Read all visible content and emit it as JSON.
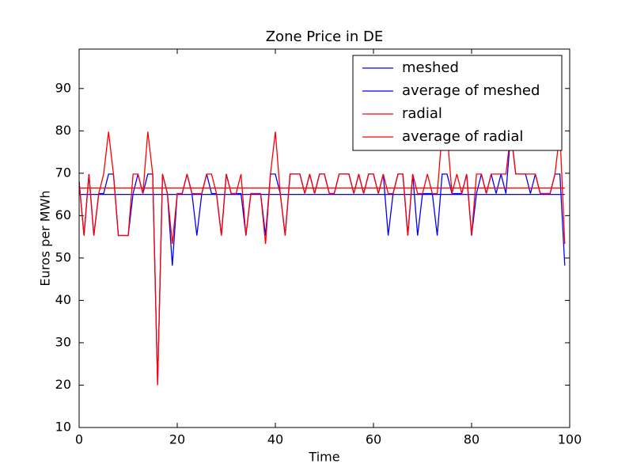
{
  "chart_data": {
    "type": "line",
    "title": "Zone Price in DE",
    "xlabel": "Time",
    "ylabel": "Euros per MWh",
    "x": [
      0,
      1,
      2,
      3,
      4,
      5,
      6,
      7,
      8,
      9,
      10,
      11,
      12,
      13,
      14,
      15,
      16,
      17,
      18,
      19,
      20,
      21,
      22,
      23,
      24,
      25,
      26,
      27,
      28,
      29,
      30,
      31,
      32,
      33,
      34,
      35,
      36,
      37,
      38,
      39,
      40,
      41,
      42,
      43,
      44,
      45,
      46,
      47,
      48,
      49,
      50,
      51,
      52,
      53,
      54,
      55,
      56,
      57,
      58,
      59,
      60,
      61,
      62,
      63,
      64,
      65,
      66,
      67,
      68,
      69,
      70,
      71,
      72,
      73,
      74,
      75,
      76,
      77,
      78,
      79,
      80,
      81,
      82,
      83,
      84,
      85,
      86,
      87,
      88,
      89,
      90,
      91,
      92,
      93,
      94,
      95,
      96,
      97,
      98,
      99
    ],
    "series": [
      {
        "name": "meshed",
        "color": "#0000ff",
        "values": [
          68,
          55.3,
          69.8,
          55.3,
          65.2,
          65.2,
          69.8,
          69.8,
          55.3,
          55.3,
          55.3,
          65.2,
          69.8,
          65.2,
          69.8,
          69.8,
          20,
          69.8,
          65.2,
          48.2,
          65.2,
          65.2,
          69.8,
          65.2,
          55.3,
          65.2,
          69.8,
          65.2,
          65.2,
          55.3,
          69.8,
          65.2,
          65.2,
          65.2,
          55.3,
          65.2,
          65.2,
          65.2,
          55.3,
          69.8,
          69.8,
          65.2,
          55.3,
          69.8,
          69.8,
          69.8,
          65.2,
          69.8,
          65.2,
          69.8,
          69.8,
          65.2,
          65.2,
          69.8,
          69.8,
          69.8,
          65.2,
          69.8,
          65.2,
          69.8,
          69.8,
          65.2,
          69.8,
          55.3,
          65.2,
          69.8,
          69.8,
          55.3,
          69.8,
          55.3,
          65.2,
          65.2,
          65.2,
          55.3,
          69.8,
          69.8,
          65.2,
          65.2,
          65.2,
          69.8,
          55.3,
          65.2,
          69.8,
          65.2,
          69.8,
          65.2,
          69.8,
          65.2,
          79.8,
          69.8,
          69.8,
          69.8,
          65.2,
          69.8,
          65.2,
          65.2,
          65.2,
          69.8,
          69.8,
          48.2
        ]
      },
      {
        "name": "average of meshed",
        "color": "#0000ff",
        "values": [
          65,
          65,
          65,
          65,
          65,
          65,
          65,
          65,
          65,
          65,
          65,
          65,
          65,
          65,
          65,
          65,
          65,
          65,
          65,
          65,
          65,
          65,
          65,
          65,
          65,
          65,
          65,
          65,
          65,
          65,
          65,
          65,
          65,
          65,
          65,
          65,
          65,
          65,
          65,
          65,
          65,
          65,
          65,
          65,
          65,
          65,
          65,
          65,
          65,
          65,
          65,
          65,
          65,
          65,
          65,
          65,
          65,
          65,
          65,
          65,
          65,
          65,
          65,
          65,
          65,
          65,
          65,
          65,
          65,
          65,
          65,
          65,
          65,
          65,
          65,
          65,
          65,
          65,
          65,
          65,
          65,
          65,
          65,
          65,
          65,
          65,
          65,
          65,
          65,
          65,
          65,
          65,
          65,
          65,
          65,
          65,
          65,
          65,
          65,
          65
        ]
      },
      {
        "name": "radial",
        "color": "#ff0000",
        "values": [
          68,
          55.3,
          69.8,
          55.3,
          65.2,
          69.8,
          79.8,
          69.8,
          55.3,
          55.3,
          55.3,
          69.8,
          69.8,
          65.2,
          79.8,
          69.8,
          20,
          69.8,
          65.2,
          53.3,
          65.2,
          65.2,
          69.8,
          65.2,
          65.2,
          65.2,
          69.8,
          69.8,
          65.2,
          55.3,
          69.8,
          65.2,
          65.2,
          69.8,
          55.3,
          65.2,
          65.2,
          65.2,
          53.3,
          69.8,
          79.8,
          65.2,
          55.3,
          69.8,
          69.8,
          69.8,
          65.2,
          69.8,
          65.2,
          69.8,
          69.8,
          65.2,
          65.2,
          69.8,
          69.8,
          69.8,
          65.2,
          69.8,
          65.2,
          69.8,
          69.8,
          65.2,
          69.8,
          65.2,
          65.2,
          69.8,
          69.8,
          55.3,
          69.8,
          65.2,
          65.2,
          69.8,
          65.2,
          65.2,
          79.8,
          79.8,
          65.2,
          69.8,
          65.2,
          69.8,
          55.3,
          69.8,
          69.8,
          65.2,
          69.8,
          69.8,
          69.8,
          69.8,
          79.8,
          69.8,
          69.8,
          69.8,
          69.8,
          69.8,
          65.2,
          65.2,
          65.2,
          69.8,
          79.8,
          53.3
        ]
      },
      {
        "name": "average of radial",
        "color": "#ff0000",
        "values": [
          66.5,
          66.5,
          66.5,
          66.5,
          66.5,
          66.5,
          66.5,
          66.5,
          66.5,
          66.5,
          66.5,
          66.5,
          66.5,
          66.5,
          66.5,
          66.5,
          66.5,
          66.5,
          66.5,
          66.5,
          66.5,
          66.5,
          66.5,
          66.5,
          66.5,
          66.5,
          66.5,
          66.5,
          66.5,
          66.5,
          66.5,
          66.5,
          66.5,
          66.5,
          66.5,
          66.5,
          66.5,
          66.5,
          66.5,
          66.5,
          66.5,
          66.5,
          66.5,
          66.5,
          66.5,
          66.5,
          66.5,
          66.5,
          66.5,
          66.5,
          66.5,
          66.5,
          66.5,
          66.5,
          66.5,
          66.5,
          66.5,
          66.5,
          66.5,
          66.5,
          66.5,
          66.5,
          66.5,
          66.5,
          66.5,
          66.5,
          66.5,
          66.5,
          66.5,
          66.5,
          66.5,
          66.5,
          66.5,
          66.5,
          66.5,
          66.5,
          66.5,
          66.5,
          66.5,
          66.5,
          66.5,
          66.5,
          66.5,
          66.5,
          66.5,
          66.5,
          66.5,
          66.5,
          66.5,
          66.5,
          66.5,
          66.5,
          66.5,
          66.5,
          66.5,
          66.5,
          66.5,
          66.5,
          66.5,
          66.5
        ]
      }
    ],
    "xlim": [
      0,
      100
    ],
    "xticks": [
      0,
      20,
      40,
      60,
      80,
      100
    ],
    "ylim": [
      10,
      99.3
    ],
    "yticks": [
      10,
      20,
      30,
      40,
      50,
      60,
      70,
      80,
      90
    ],
    "legend": "upper right"
  }
}
